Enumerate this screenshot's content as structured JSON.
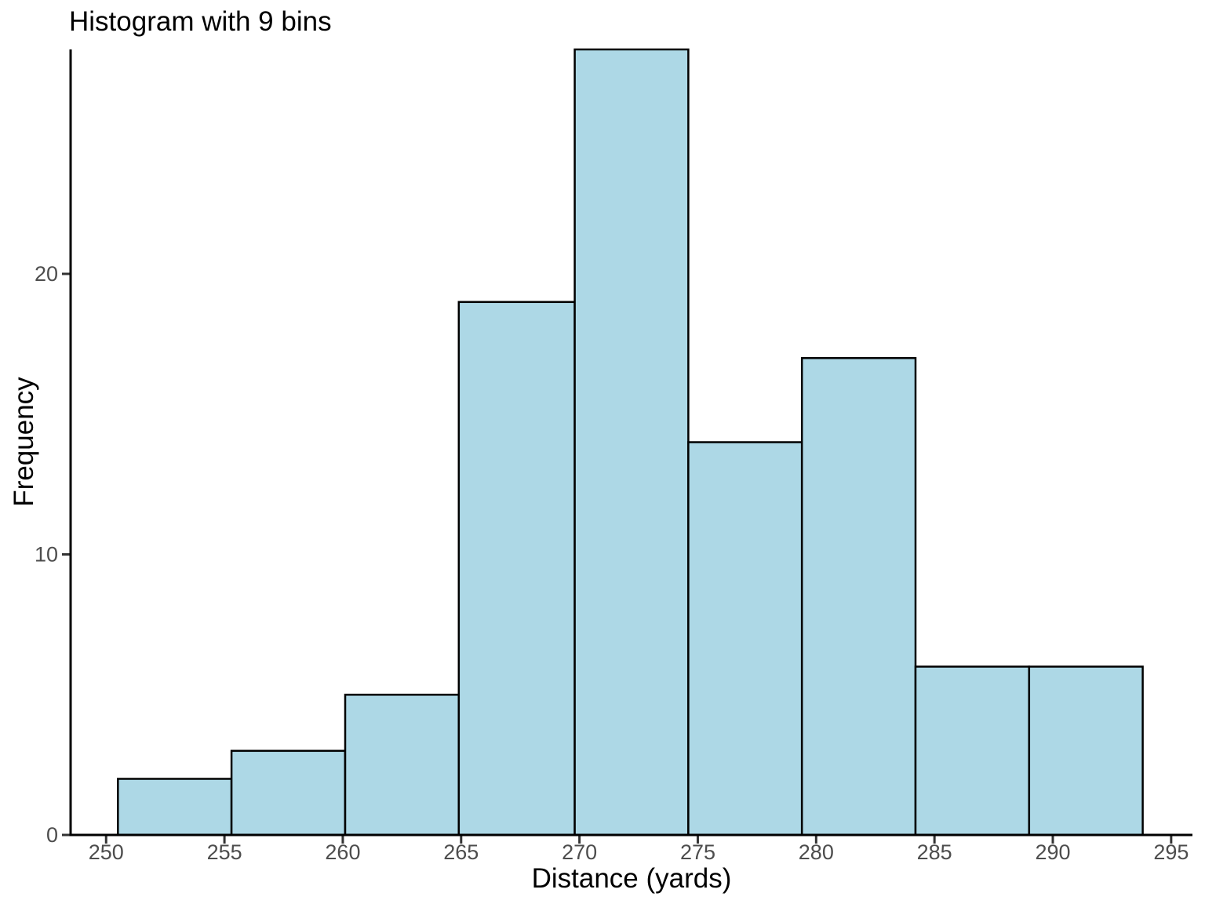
{
  "chart_data": {
    "type": "bar",
    "subtype": "histogram",
    "title": "Histogram with 9 bins",
    "xlabel": "Distance (yards)",
    "ylabel": "Frequency",
    "bin_edges": [
      250.5,
      255.3,
      260.1,
      264.9,
      269.8,
      274.6,
      279.4,
      284.2,
      289.0,
      293.8
    ],
    "frequencies": [
      2,
      3,
      5,
      19,
      28,
      14,
      17,
      6,
      6
    ],
    "x_ticks": [
      250,
      255,
      260,
      265,
      270,
      275,
      280,
      285,
      290,
      295
    ],
    "y_ticks": [
      0,
      10,
      20
    ],
    "x_domain": [
      248.5,
      295.9
    ],
    "y_domain": [
      0,
      28
    ],
    "grid": false,
    "legend": "none",
    "colors": {
      "bar_fill": "#ADD8E6",
      "bar_stroke": "#000000",
      "axis": "#000000",
      "tick_mark": "#333333",
      "tick_label": "#4D4D4D",
      "title": "#000000",
      "background": "#FFFFFF"
    }
  }
}
